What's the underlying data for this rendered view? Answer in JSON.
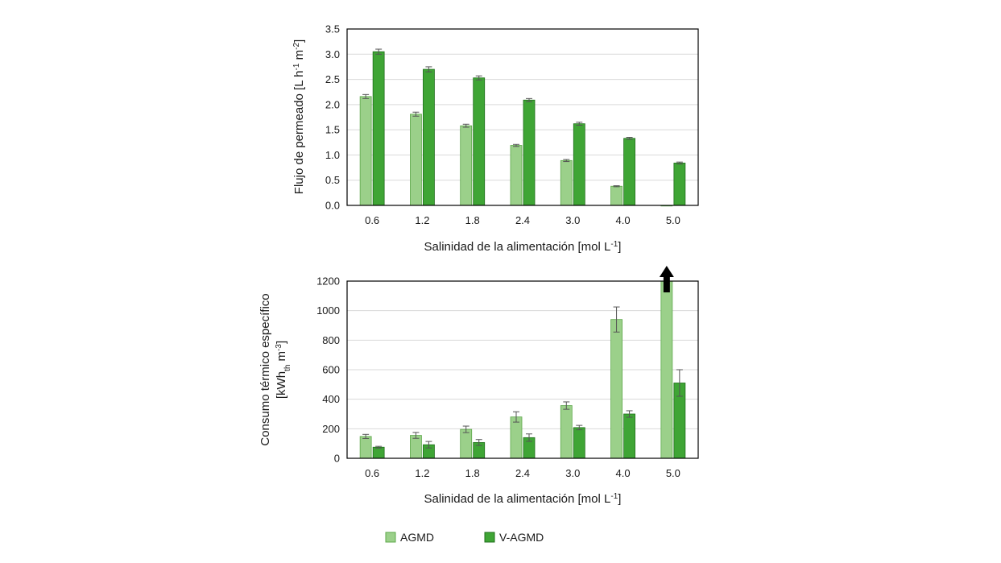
{
  "colors": {
    "agmd_fill": "#9bd08a",
    "agmd_stroke": "#5da84a",
    "vagmd_fill": "#3fa535",
    "vagmd_stroke": "#1f6e1a",
    "grid": "#d9d9d9",
    "error": "#555555",
    "arrow": "#000000"
  },
  "legend": {
    "agmd": "AGMD",
    "vagmd": "V-AGMD"
  },
  "chart_data": [
    {
      "type": "bar",
      "ylabel": {
        "main": "Flujo de permeado [L h",
        "sup1": "-1",
        "mid": " m",
        "sup2": "-2",
        "end": "]"
      },
      "xlabel": {
        "main": "Salinidad de la alimentación [mol L",
        "sup": "-1",
        "end": "]"
      },
      "categories": [
        "0.6",
        "1.2",
        "1.8",
        "2.4",
        "3.0",
        "4.0",
        "5.0"
      ],
      "ylim": [
        0,
        3.5
      ],
      "yticks": [
        "0.0",
        "0.5",
        "1.0",
        "1.5",
        "2.0",
        "2.5",
        "3.0",
        "3.5"
      ],
      "grid": true,
      "series": [
        {
          "name": "AGMD",
          "values": [
            2.16,
            1.81,
            1.58,
            1.19,
            0.89,
            0.38,
            0.0
          ],
          "errors": [
            0.04,
            0.04,
            0.03,
            0.02,
            0.02,
            0.01,
            0.0
          ]
        },
        {
          "name": "V-AGMD",
          "values": [
            3.05,
            2.7,
            2.53,
            2.09,
            1.62,
            1.33,
            0.84
          ],
          "errors": [
            0.05,
            0.05,
            0.04,
            0.03,
            0.03,
            0.02,
            0.02
          ]
        }
      ]
    },
    {
      "type": "bar",
      "ylabel": {
        "line1": "Consumo térmico específico",
        "main": "[kWh",
        "sub": "th",
        "mid": " m",
        "sup": "-3",
        "end": "]"
      },
      "xlabel": {
        "main": "Salinidad de la alimentación [mol L",
        "sup": "-1",
        "end": "]"
      },
      "categories": [
        "0.6",
        "1.2",
        "1.8",
        "2.4",
        "3.0",
        "4.0",
        "5.0"
      ],
      "ylim": [
        0,
        1200
      ],
      "yticks": [
        "0",
        "200",
        "400",
        "600",
        "800",
        "1000",
        "1200"
      ],
      "grid": true,
      "annotation": "upward arrow on AGMD bar at 5.0 (value exceeds axis)",
      "series": [
        {
          "name": "AGMD",
          "values": [
            148,
            155,
            196,
            280,
            357,
            940,
            1200
          ],
          "errors": [
            14,
            20,
            22,
            35,
            25,
            85,
            0
          ]
        },
        {
          "name": "V-AGMD",
          "values": [
            75,
            92,
            107,
            140,
            208,
            300,
            510
          ],
          "errors": [
            6,
            22,
            20,
            25,
            15,
            22,
            90
          ]
        }
      ]
    }
  ]
}
